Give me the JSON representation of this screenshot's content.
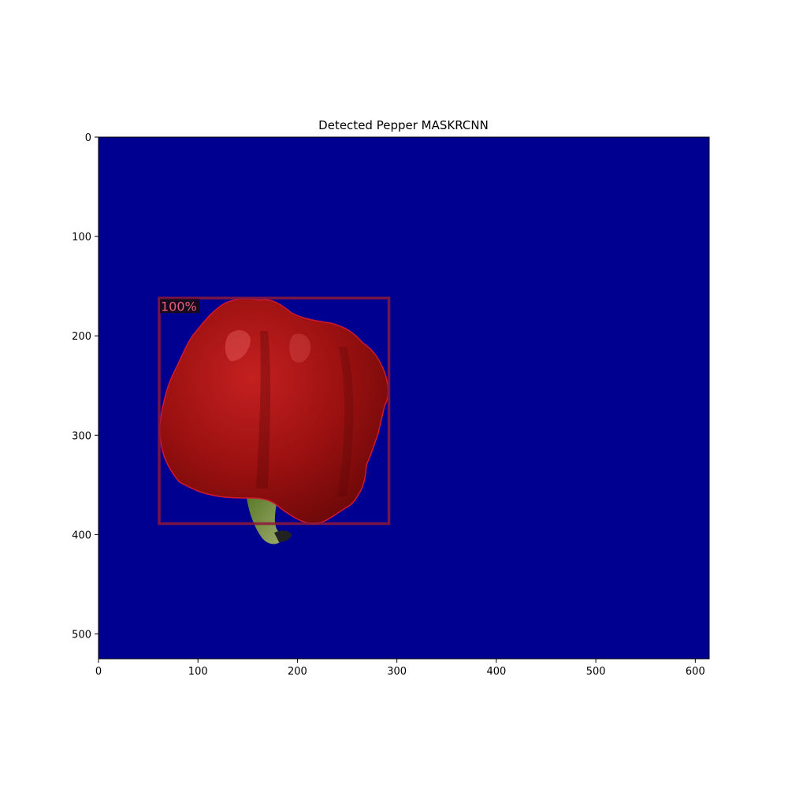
{
  "figure": {
    "title": "Detected Pepper MASKRCNN"
  },
  "image": {
    "width": 614,
    "height": 525,
    "background_color": "#000090"
  },
  "axes": {
    "x_ticks": [
      0,
      100,
      200,
      300,
      400,
      500,
      600
    ],
    "y_ticks": [
      0,
      100,
      200,
      300,
      400,
      500
    ]
  },
  "detection": {
    "score_label": "100%",
    "box_color": "#8c1a3a",
    "label_text_color": "#e8607a",
    "label_bg_color": "#1a0a12",
    "object_color": "#a01010",
    "stem_color": "#6b8e3a",
    "box": {
      "x0": 61,
      "y0": 162,
      "x1": 292,
      "y1": 389
    }
  }
}
